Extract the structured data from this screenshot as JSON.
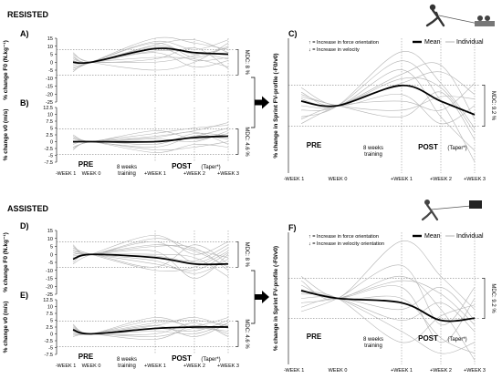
{
  "sections": [
    {
      "label": "RESISTED",
      "kind": "resisted"
    },
    {
      "label": "ASSISTED",
      "kind": "assisted"
    }
  ],
  "x_ticks": [
    "-WEEK 1",
    "WEEK 0",
    "+WEEK 1",
    "+WEEK 2",
    "+WEEK 3"
  ],
  "phase_labels": {
    "pre": "PRE",
    "post": "POST",
    "taper": "(Taper*)",
    "training_line1": "8 weeks",
    "training_line2": "training"
  },
  "legend": {
    "mean": "Mean",
    "individual": "Individual",
    "arrow_up": "↑ = Increase in force orientation",
    "arrow_down": "↓ = Increase in velocity",
    "arrow_down_assisted": "↓ = Increase in velocity orientation"
  },
  "colors": {
    "mean": "#000000",
    "individual": "#b3b3b3",
    "dashed": "#666666",
    "axis": "#000000",
    "arrow": "#000000"
  },
  "chart_data": [
    {
      "id": "A",
      "panel_label": "A)",
      "type": "line",
      "ylabel": "% change F0 (N.kg⁻¹)",
      "ylim": [
        -25,
        15
      ],
      "yticks": [
        15,
        10,
        5,
        0,
        -5,
        -10,
        -15,
        -20,
        -25
      ],
      "mdc": {
        "label": "MDC: 8 %",
        "value": 8
      },
      "x": [
        "-WEEK 1",
        "WEEK 0",
        "+WEEK 1",
        "+WEEK 2",
        "+WEEK 3"
      ],
      "mean": [
        0,
        0,
        8.5,
        6,
        5
      ],
      "individual": [
        [
          -4,
          0,
          13,
          8,
          14
        ],
        [
          3,
          0,
          10,
          5,
          6
        ],
        [
          -2,
          0,
          3,
          2,
          -3
        ],
        [
          5,
          0,
          -5,
          0,
          12
        ],
        [
          -5,
          0,
          15,
          12,
          8
        ],
        [
          2,
          0,
          6,
          -3,
          1
        ],
        [
          -3,
          0,
          12,
          3,
          10
        ],
        [
          6,
          0,
          2,
          9,
          -4
        ],
        [
          1,
          0,
          9,
          1,
          3
        ],
        [
          -1,
          0,
          0,
          4,
          9
        ],
        [
          4,
          0,
          11,
          14,
          6
        ],
        [
          -6,
          0,
          7,
          6,
          2
        ]
      ]
    },
    {
      "id": "B",
      "panel_label": "B)",
      "type": "line",
      "ylabel": "% change v0 (m/s)",
      "ylim": [
        -7.5,
        12.5
      ],
      "yticks": [
        12.5,
        10,
        7.5,
        5,
        2.5,
        0,
        -2.5,
        -5,
        -7.5
      ],
      "mdc": {
        "label": "MDC: 4.6 %",
        "value": 4.6
      },
      "x": [
        "-WEEK 1",
        "WEEK 0",
        "+WEEK 1",
        "+WEEK 2",
        "+WEEK 3"
      ],
      "mean": [
        0,
        0,
        0,
        1.5,
        2
      ],
      "individual": [
        [
          -2,
          0,
          3,
          5,
          6
        ],
        [
          1,
          0,
          -2,
          2,
          1
        ],
        [
          2,
          0,
          1,
          0,
          4
        ],
        [
          -1,
          0,
          -4,
          -1,
          -2
        ],
        [
          0,
          0,
          2,
          4,
          7
        ],
        [
          -3,
          0,
          -1,
          3,
          2
        ],
        [
          1.5,
          0,
          4,
          1,
          3
        ],
        [
          -0.5,
          0,
          -3,
          -2,
          0
        ],
        [
          2.5,
          0,
          0,
          2,
          5
        ],
        [
          -2.5,
          0,
          1.5,
          3.5,
          -1
        ]
      ]
    },
    {
      "id": "C",
      "panel_label": "C)",
      "type": "line",
      "ylabel": "% change in Sprint FV-profile (-F0/v0)",
      "ylim": [
        -30,
        30
      ],
      "yticks": [],
      "mdc": {
        "label": "MDC: 9.2 %",
        "value": 9.2
      },
      "x": [
        "-WEEK 1",
        "WEEK 0",
        "+WEEK 1",
        "+WEEK 2",
        "+WEEK 3"
      ],
      "mean": [
        2,
        0,
        9,
        2,
        -4
      ],
      "individual": [
        [
          -5,
          0,
          24,
          10,
          -10
        ],
        [
          6,
          0,
          16,
          -5,
          -20
        ],
        [
          -8,
          0,
          10,
          15,
          5
        ],
        [
          4,
          0,
          -5,
          6,
          -15
        ],
        [
          -2,
          0,
          20,
          2,
          -25
        ],
        [
          8,
          0,
          5,
          -8,
          0
        ],
        [
          0,
          0,
          14,
          18,
          -6
        ],
        [
          -6,
          0,
          2,
          -2,
          10
        ],
        [
          3,
          0,
          12,
          8,
          -12
        ],
        [
          5,
          0,
          -2,
          4,
          3
        ]
      ]
    },
    {
      "id": "D",
      "panel_label": "D)",
      "type": "line",
      "ylabel": "% change F0 (N.kg⁻¹)",
      "ylim": [
        -25,
        15
      ],
      "yticks": [
        15,
        10,
        5,
        0,
        -5,
        -10,
        -15,
        -20,
        -25
      ],
      "mdc": {
        "label": "MDC: 8 %",
        "value": 8
      },
      "x": [
        "-WEEK 1",
        "WEEK 0",
        "+WEEK 1",
        "+WEEK 2",
        "+WEEK 3"
      ],
      "mean": [
        -3,
        0,
        -2,
        -6,
        -6
      ],
      "individual": [
        [
          -6,
          0,
          12,
          0,
          8
        ],
        [
          2,
          0,
          -4,
          -12,
          -3
        ],
        [
          -3,
          0,
          5,
          4,
          -10
        ],
        [
          4,
          0,
          -10,
          -8,
          2
        ],
        [
          -1,
          0,
          0,
          -2,
          -14
        ],
        [
          5,
          0,
          8,
          -5,
          4
        ],
        [
          -5,
          0,
          -8,
          6,
          -6
        ],
        [
          1,
          0,
          2,
          -15,
          0
        ],
        [
          3,
          0,
          -1,
          -4,
          6
        ],
        [
          -2,
          0,
          6,
          2,
          -8
        ],
        [
          0,
          0,
          -6,
          -10,
          1
        ],
        [
          6,
          0,
          10,
          3,
          -2
        ]
      ]
    },
    {
      "id": "E",
      "panel_label": "E)",
      "type": "line",
      "ylabel": "% change v0 (m/s)",
      "ylim": [
        -7.5,
        12.5
      ],
      "yticks": [
        12.5,
        10,
        7.5,
        5,
        2.5,
        0,
        -2.5,
        -5,
        -7.5
      ],
      "mdc": {
        "label": "MDC: 4.6 %",
        "value": 4.6
      },
      "x": [
        "-WEEK 1",
        "WEEK 0",
        "+WEEK 1",
        "+WEEK 2",
        "+WEEK 3"
      ],
      "mean": [
        1.5,
        0,
        2,
        2.5,
        2.5
      ],
      "individual": [
        [
          0,
          0,
          4,
          5,
          3
        ],
        [
          2,
          0,
          1,
          0,
          4
        ],
        [
          3,
          0,
          3,
          6,
          2
        ],
        [
          -1,
          0,
          -1,
          2,
          1
        ],
        [
          1,
          0,
          5,
          3,
          6
        ],
        [
          2.5,
          0,
          0,
          4,
          -1
        ],
        [
          -0.5,
          0,
          2,
          1,
          5
        ],
        [
          1.5,
          0,
          6,
          2,
          3
        ],
        [
          0.5,
          0,
          -2,
          3,
          0
        ],
        [
          3.5,
          0,
          3,
          -1,
          4
        ]
      ]
    },
    {
      "id": "F",
      "panel_label": "F)",
      "type": "line",
      "ylabel": "% change in Sprint FV-profile (-F0/v0)",
      "ylim": [
        -30,
        30
      ],
      "yticks": [],
      "mdc": {
        "label": "MDC: 9.2 %",
        "value": 9.2
      },
      "x": [
        "-WEEK 1",
        "WEEK 0",
        "+WEEK 1",
        "+WEEK 2",
        "+WEEK 3"
      ],
      "mean": [
        3.5,
        0,
        -2,
        -10,
        -9
      ],
      "individual": [
        [
          8,
          0,
          26,
          10,
          -5
        ],
        [
          2,
          0,
          -15,
          -25,
          -20
        ],
        [
          6,
          0,
          10,
          -5,
          -28
        ],
        [
          -4,
          0,
          -5,
          5,
          -10
        ],
        [
          4,
          0,
          5,
          -20,
          0
        ],
        [
          0,
          0,
          -10,
          -2,
          -15
        ],
        [
          -6,
          0,
          15,
          -12,
          5
        ],
        [
          10,
          0,
          0,
          -18,
          -25
        ],
        [
          3,
          0,
          -20,
          -8,
          -3
        ],
        [
          -2,
          0,
          8,
          2,
          -12
        ]
      ]
    }
  ]
}
